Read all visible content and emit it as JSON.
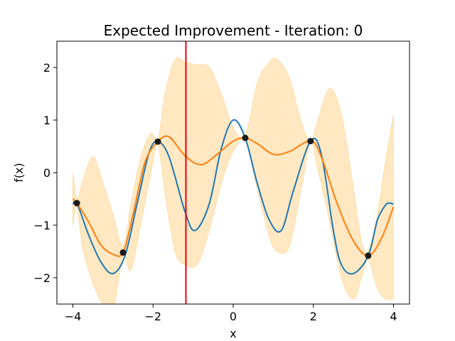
{
  "chart_data": {
    "type": "line",
    "title": "Expected Improvement - Iteration: 0",
    "xlabel": "x",
    "ylabel": "f(x)",
    "xlim": [
      -4.4,
      4.4
    ],
    "ylim": [
      -2.5,
      2.5
    ],
    "xticks": [
      -4,
      -2,
      0,
      2,
      4
    ],
    "xtick_labels": [
      "−4",
      "−2",
      "0",
      "2",
      "4"
    ],
    "yticks": [
      -2,
      -1,
      0,
      1,
      2
    ],
    "ytick_labels": [
      "−2",
      "−1",
      "0",
      "1",
      "2"
    ],
    "grid": false,
    "observations": {
      "x": [
        -3.9,
        -2.75,
        -1.88,
        0.3,
        1.93,
        3.37
      ],
      "y": [
        -0.58,
        -1.52,
        0.59,
        0.66,
        0.6,
        -1.58
      ]
    },
    "true_function": {
      "x": [
        -4.0,
        -3.9,
        -3.6,
        -3.3,
        -3.0,
        -2.7,
        -2.4,
        -2.1,
        -1.88,
        -1.6,
        -1.2,
        -0.95,
        -0.6,
        -0.3,
        0.0,
        0.3,
        0.6,
        0.9,
        1.2,
        1.5,
        1.93,
        2.2,
        2.5,
        2.7,
        3.0,
        3.37,
        3.6,
        3.8,
        3.9,
        4.0
      ],
      "y": [
        -0.6,
        -0.58,
        -1.2,
        -1.7,
        -1.92,
        -1.58,
        -0.6,
        0.38,
        0.59,
        0.3,
        -0.75,
        -1.1,
        -0.6,
        0.45,
        1.0,
        0.66,
        -0.2,
        -0.9,
        -1.1,
        -0.35,
        0.6,
        0.35,
        -1.1,
        -1.75,
        -1.92,
        -1.58,
        -0.9,
        -0.62,
        -0.58,
        -0.6
      ]
    },
    "gp_mean": {
      "x": [
        -4.0,
        -3.9,
        -3.6,
        -3.3,
        -3.0,
        -2.75,
        -2.5,
        -2.2,
        -1.88,
        -1.6,
        -1.2,
        -0.8,
        -0.4,
        0.0,
        0.3,
        0.6,
        1.0,
        1.4,
        1.93,
        2.2,
        2.6,
        3.0,
        3.37,
        3.7,
        4.0
      ],
      "y": [
        -0.5,
        -0.58,
        -0.95,
        -1.38,
        -1.55,
        -1.52,
        -0.8,
        0.2,
        0.59,
        0.68,
        0.32,
        0.15,
        0.35,
        0.6,
        0.66,
        0.55,
        0.35,
        0.4,
        0.6,
        0.3,
        -0.6,
        -1.3,
        -1.58,
        -1.25,
        -0.65
      ]
    },
    "gp_band": {
      "x": [
        -4.0,
        -3.9,
        -3.75,
        -3.5,
        -3.25,
        -3.0,
        -2.75,
        -2.55,
        -2.3,
        -2.05,
        -1.88,
        -1.7,
        -1.45,
        -1.2,
        -0.9,
        -0.6,
        -0.3,
        0.0,
        0.3,
        0.6,
        0.9,
        1.1,
        1.4,
        1.7,
        1.93,
        2.1,
        2.4,
        2.7,
        3.0,
        3.2,
        3.37,
        3.6,
        3.8,
        4.0
      ],
      "upper": [
        0.0,
        -0.5,
        -0.15,
        0.3,
        -0.2,
        -0.8,
        -1.4,
        -0.6,
        0.3,
        0.75,
        0.6,
        1.5,
        2.15,
        2.1,
        2.05,
        2.0,
        1.5,
        0.85,
        0.7,
        1.7,
        2.1,
        2.15,
        1.8,
        0.95,
        0.6,
        0.95,
        1.6,
        1.1,
        -0.3,
        -1.3,
        -1.5,
        -0.8,
        0.2,
        1.1
      ],
      "lower": [
        -1.0,
        -0.65,
        -1.45,
        -2.1,
        -2.5,
        -2.6,
        -1.6,
        -1.85,
        -0.95,
        0.0,
        0.55,
        -0.4,
        -1.5,
        -1.75,
        -1.75,
        -1.1,
        -0.2,
        0.4,
        0.62,
        -0.3,
        -1.2,
        -1.5,
        -1.4,
        -0.3,
        0.58,
        0.1,
        -0.9,
        -2.0,
        -2.4,
        -2.0,
        -1.65,
        -2.2,
        -2.4,
        -2.4
      ]
    },
    "next_query_x": -1.18,
    "colors": {
      "true_function": "#1f77b4",
      "gp_mean": "#ff7f0e",
      "band": "#ffe8c2",
      "vline": "#e8000b",
      "points": "#1a1a1a"
    }
  }
}
